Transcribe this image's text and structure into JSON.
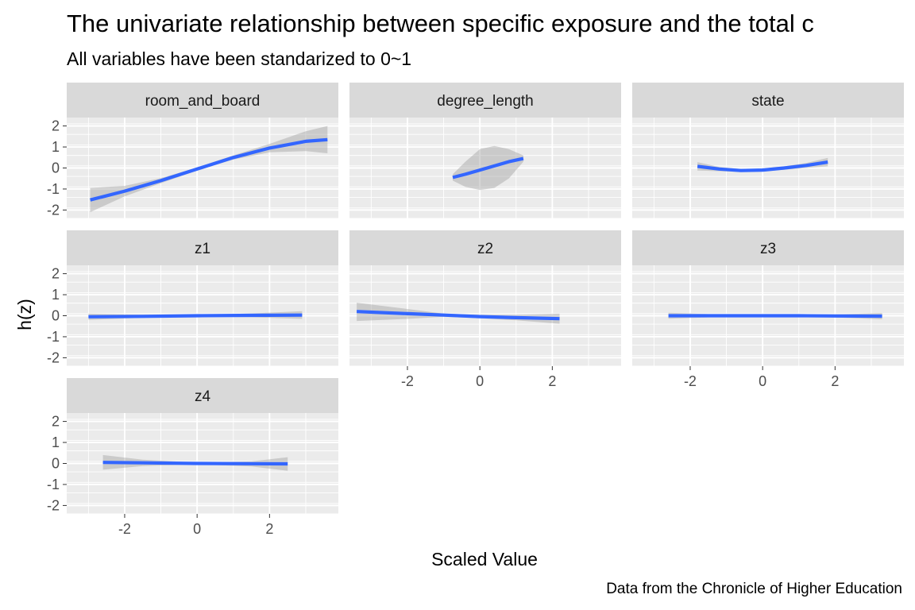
{
  "chart_data": {
    "type": "line",
    "title": "The univariate relationship between specific exposure and the total c",
    "subtitle": "All variables have been standarized to 0~1",
    "caption": "Data from the Chronicle of Higher Education",
    "xlabel": "Scaled Value",
    "ylabel": "h(z)",
    "xlim": [
      -3.6,
      3.9
    ],
    "ylim": [
      -2.4,
      2.4
    ],
    "x_ticks": [
      -2,
      0,
      2
    ],
    "y_ticks": [
      -2,
      -1,
      0,
      1,
      2
    ],
    "x_tick_labels": [
      "-2",
      "0",
      "2"
    ],
    "y_tick_labels": [
      "-2",
      "-1",
      "0",
      "1",
      "2"
    ],
    "grid": true,
    "line_color": "#3366ff",
    "ribbon_color": "#999999",
    "panel_background": "#ebebeb",
    "strip_background": "#d9d9d9",
    "layout": {
      "ncol": 3,
      "nrow": 3
    },
    "panels": [
      {
        "name": "room_and_board",
        "x": [
          -2.95,
          -2,
          -1,
          0,
          1,
          2,
          3,
          3.6
        ],
        "y": [
          -1.52,
          -1.1,
          -0.6,
          -0.05,
          0.5,
          0.95,
          1.27,
          1.35
        ],
        "lower": [
          -2.1,
          -1.35,
          -0.72,
          -0.12,
          0.4,
          0.75,
          0.8,
          0.7
        ],
        "upper": [
          -0.95,
          -0.85,
          -0.48,
          0.02,
          0.6,
          1.15,
          1.75,
          2.0
        ]
      },
      {
        "name": "degree_length",
        "x": [
          -0.75,
          -0.4,
          0,
          0.4,
          0.8,
          1.2
        ],
        "y": [
          -0.45,
          -0.3,
          -0.1,
          0.1,
          0.3,
          0.45
        ],
        "lower": [
          -0.6,
          -0.9,
          -1.05,
          -0.95,
          -0.5,
          0.3
        ],
        "upper": [
          -0.3,
          0.3,
          0.9,
          1.05,
          0.9,
          0.6
        ]
      },
      {
        "name": "state",
        "x": [
          -1.8,
          -1.2,
          -0.6,
          0,
          0.6,
          1.2,
          1.8
        ],
        "y": [
          0.08,
          -0.05,
          -0.12,
          -0.1,
          0.0,
          0.12,
          0.28
        ],
        "lower": [
          -0.12,
          -0.15,
          -0.19,
          -0.17,
          -0.08,
          0.0,
          0.08
        ],
        "upper": [
          0.28,
          0.05,
          -0.05,
          -0.03,
          0.08,
          0.24,
          0.48
        ]
      },
      {
        "name": "z1",
        "x": [
          -3,
          -1.5,
          0,
          1.5,
          2.9
        ],
        "y": [
          -0.05,
          -0.03,
          0.0,
          0.02,
          0.03
        ],
        "lower": [
          -0.2,
          -0.1,
          -0.04,
          -0.07,
          -0.15
        ],
        "upper": [
          0.1,
          0.04,
          0.04,
          0.11,
          0.22
        ]
      },
      {
        "name": "z2",
        "x": [
          -3.4,
          -2,
          -1,
          0,
          1,
          2.2
        ],
        "y": [
          0.2,
          0.1,
          0.03,
          -0.04,
          -0.09,
          -0.14
        ],
        "lower": [
          -0.25,
          -0.15,
          -0.05,
          -0.12,
          -0.22,
          -0.38
        ],
        "upper": [
          0.62,
          0.32,
          0.1,
          0.04,
          0.04,
          0.1
        ]
      },
      {
        "name": "z3",
        "x": [
          -2.6,
          -1,
          0,
          1,
          2,
          3.3
        ],
        "y": [
          0.0,
          0.0,
          0.0,
          0.0,
          -0.01,
          -0.02
        ],
        "lower": [
          -0.14,
          -0.05,
          -0.04,
          -0.05,
          -0.08,
          -0.17
        ],
        "upper": [
          0.14,
          0.05,
          0.04,
          0.05,
          0.06,
          0.13
        ]
      },
      {
        "name": "z4",
        "x": [
          -2.6,
          -1.5,
          0,
          1.5,
          2.5
        ],
        "y": [
          0.05,
          0.03,
          0.0,
          -0.01,
          -0.02
        ],
        "lower": [
          -0.3,
          -0.12,
          -0.04,
          -0.14,
          -0.35
        ],
        "upper": [
          0.4,
          0.18,
          0.04,
          0.1,
          0.3
        ]
      }
    ]
  }
}
